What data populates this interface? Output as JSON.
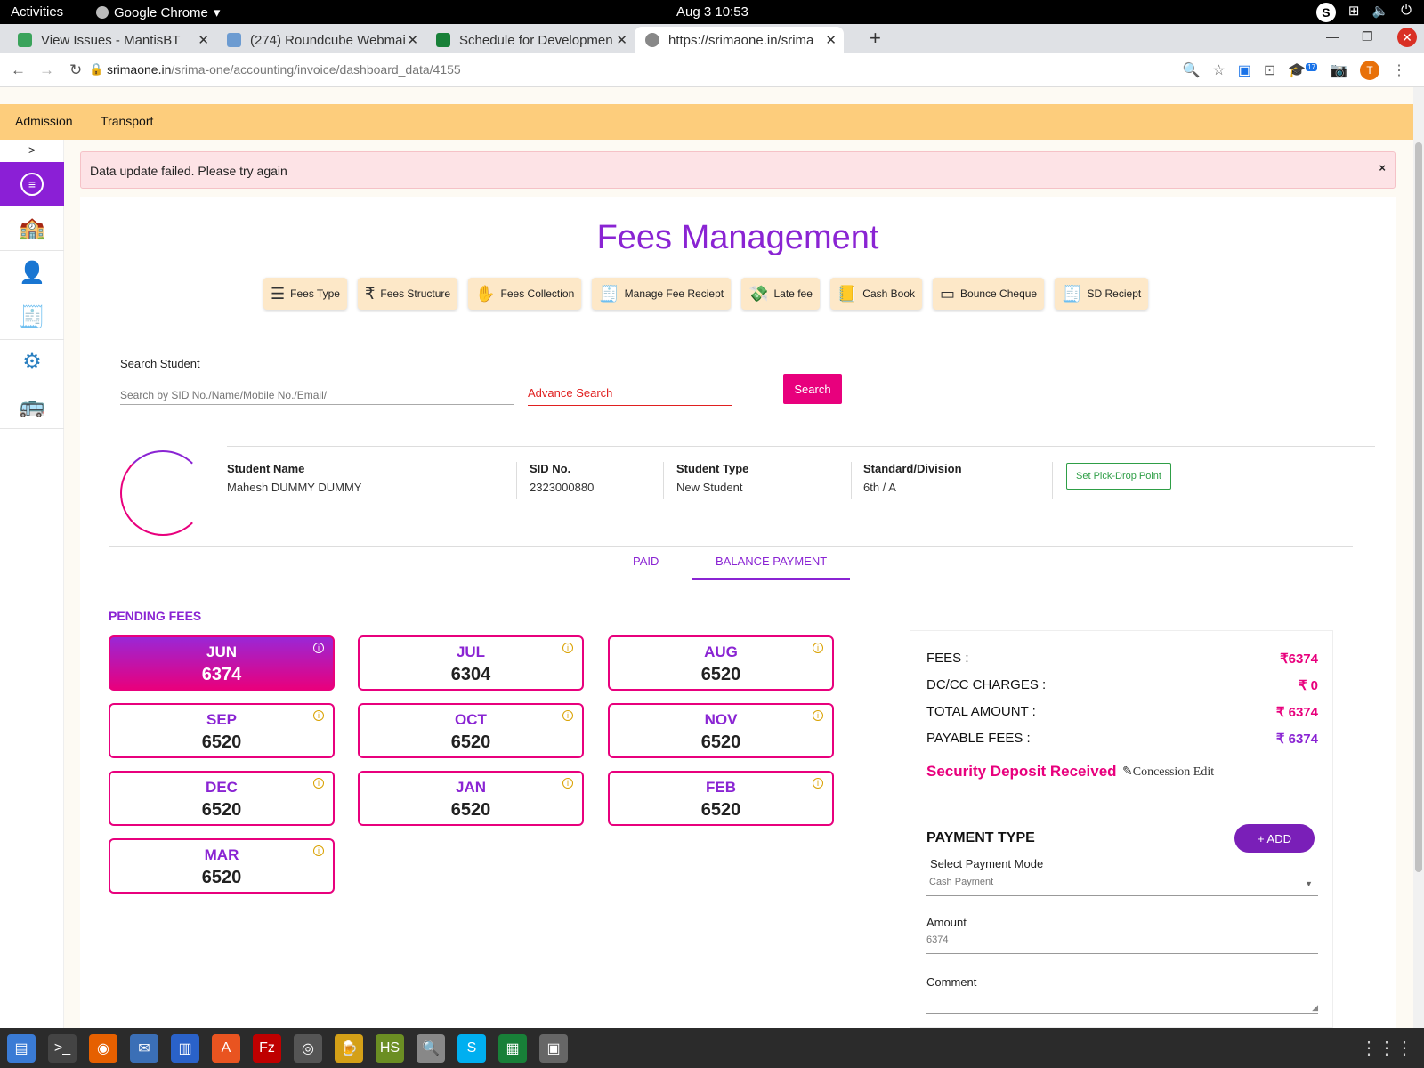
{
  "os": {
    "activities": "Activities",
    "app_name": "Google Chrome",
    "clock": "Aug 3  10:53"
  },
  "browser": {
    "tabs": [
      {
        "label": "View Issues - MantisBT",
        "color": "#3aa35b"
      },
      {
        "label": "(274) Roundcube Webmai",
        "color": "#6c9bd1"
      },
      {
        "label": "Schedule for Developmen",
        "color": "#188038"
      },
      {
        "label": "https://srimaone.in/srima",
        "color": "#888888"
      }
    ],
    "url_host": "srimaone.in",
    "url_path": "/srima-one/accounting/invoice/dashboard_data/4155",
    "profile_initial": "T",
    "badge": "17"
  },
  "topnav": {
    "admission": "Admission",
    "transport": "Transport"
  },
  "sidebar": {
    "toggle": ">"
  },
  "alert": {
    "message": "Data update failed. Please try again",
    "close": "×"
  },
  "page": {
    "title": "Fees Management"
  },
  "tiles": [
    {
      "label": "Fees Type",
      "icon": "list-icon"
    },
    {
      "label": "Fees Structure",
      "icon": "rupee-structure-icon"
    },
    {
      "label": "Fees Collection",
      "icon": "hand-money-icon"
    },
    {
      "label": "Manage Fee Reciept",
      "icon": "receipt-icon"
    },
    {
      "label": "Late fee",
      "icon": "money-hand-icon"
    },
    {
      "label": "Cash Book",
      "icon": "cash-book-icon"
    },
    {
      "label": "Bounce Cheque",
      "icon": "cheque-icon"
    },
    {
      "label": "SD Reciept",
      "icon": "receipt-icon"
    }
  ],
  "search": {
    "label": "Search Student",
    "placeholder": "Search by SID No./Name/Mobile No./Email/",
    "advance": "Advance Search",
    "button": "Search"
  },
  "student": {
    "name_label": "Student Name",
    "name": "Mahesh DUMMY DUMMY",
    "sid_label": "SID No.",
    "sid": "2323000880",
    "type_label": "Student Type",
    "type": "New Student",
    "std_label": "Standard/Division",
    "std": "6th / A",
    "pick_button": "Set Pick-Drop Point"
  },
  "payment_tabs": {
    "paid": "PAID",
    "balance": "BALANCE PAYMENT"
  },
  "pending": {
    "title": "PENDING FEES",
    "months": [
      {
        "m": "JUN",
        "a": "6374",
        "selected": true
      },
      {
        "m": "JUL",
        "a": "6304"
      },
      {
        "m": "AUG",
        "a": "6520"
      },
      {
        "m": "SEP",
        "a": "6520"
      },
      {
        "m": "OCT",
        "a": "6520"
      },
      {
        "m": "NOV",
        "a": "6520"
      },
      {
        "m": "DEC",
        "a": "6520"
      },
      {
        "m": "JAN",
        "a": "6520"
      },
      {
        "m": "FEB",
        "a": "6520"
      },
      {
        "m": "MAR",
        "a": "6520"
      }
    ]
  },
  "summary": {
    "fees_label": "FEES :",
    "fees": "₹6374",
    "dc_label": "DC/CC CHARGES :",
    "dc": "₹ 0",
    "total_label": "TOTAL AMOUNT :",
    "total": "₹ 6374",
    "payable_label": "PAYABLE FEES :",
    "payable": "₹ 6374",
    "security": "Security Deposit Received",
    "concession": "Concession Edit",
    "payment_type": "PAYMENT TYPE",
    "add": "+ ADD",
    "mode_label": "Select Payment Mode",
    "mode_value": "Cash Payment",
    "amount_label": "Amount",
    "amount_value": "6374",
    "comment_label": "Comment"
  }
}
